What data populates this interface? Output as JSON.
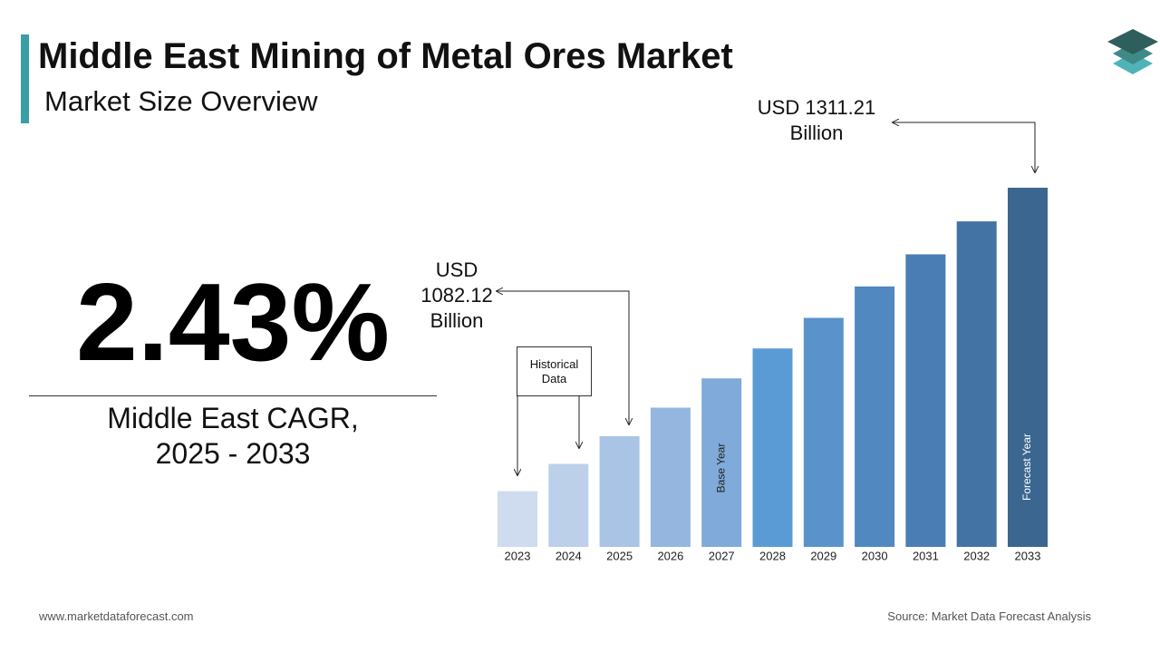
{
  "header": {
    "title": "Middle East Mining of Metal Ores Market",
    "subtitle": "Market Size Overview"
  },
  "cagr": {
    "value": "2.43%",
    "label": "Middle East CAGR, 2025 - 2033"
  },
  "historical_note": "Historical Data",
  "footer": {
    "website": "www.marketdataforecast.com",
    "source": "Source: Market Data Forecast Analysis"
  },
  "chart_data": {
    "type": "bar",
    "categories": [
      "2023",
      "2024",
      "2025",
      "2026",
      "2027",
      "2028",
      "2029",
      "2030",
      "2031",
      "2032",
      "2033"
    ],
    "values": [
      1031.4,
      1056.5,
      1082.12,
      1108.4,
      1135.4,
      1163.0,
      1191.2,
      1220.2,
      1249.8,
      1280.2,
      1311.21
    ],
    "value_labels": [
      null,
      null,
      "USD 1082.12 Billion",
      null,
      null,
      null,
      null,
      null,
      null,
      null,
      "USD 1311.21 Billion"
    ],
    "bar_labels": [
      null,
      null,
      null,
      null,
      "Base Year",
      null,
      null,
      null,
      null,
      null,
      "Forecast Year"
    ],
    "colors": [
      "#cfdcef",
      "#bcd0ea",
      "#a9c4e5",
      "#94b6df",
      "#7faad9",
      "#5b9bd5",
      "#5a93cc",
      "#5188c0",
      "#4a7db3",
      "#4373a5",
      "#3a6690"
    ],
    "ylim": [
      980,
      1320
    ]
  }
}
